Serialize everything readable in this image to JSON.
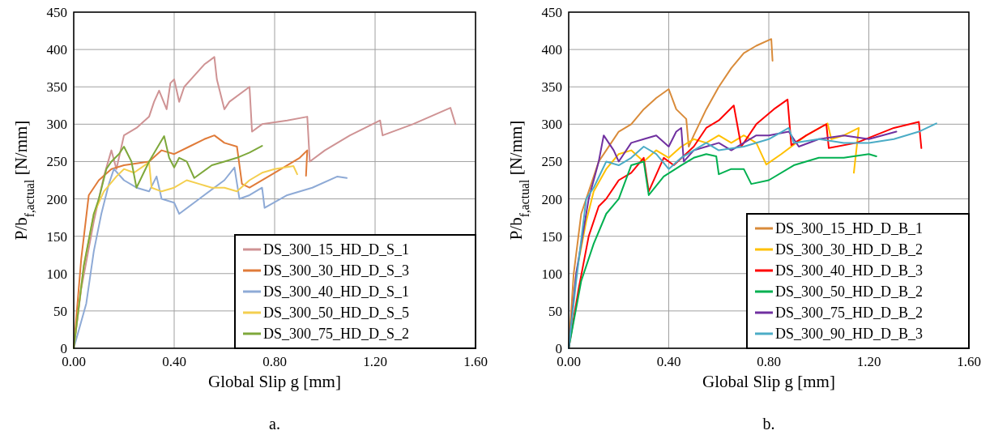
{
  "chart_data": [
    {
      "type": "line",
      "xlabel": "Global Slip g [mm]",
      "ylabel": "P/b$_{f,actual}$ [N/mm]",
      "annotations": [
        "a."
      ],
      "grid": true,
      "legend": "bottom right",
      "xlim": [
        0,
        1.6
      ],
      "xticks": [
        {
          "value": 0,
          "label": "0.00"
        },
        {
          "value": 0.4,
          "label": "0.40"
        },
        {
          "value": 0.8,
          "label": "0.80"
        },
        {
          "value": 1.2,
          "label": "1.20"
        },
        {
          "value": 1.6,
          "label": "1.60"
        }
      ],
      "ylim": [
        0,
        450
      ],
      "yticks": [
        0,
        50,
        100,
        150,
        200,
        250,
        300,
        350,
        400,
        450
      ],
      "series": [
        {
          "name": "DS_300_15_HD_D_S_1",
          "color": "#cf9394",
          "x": [
            0,
            0.03,
            0.08,
            0.12,
            0.15,
            0.17,
            0.2,
            0.25,
            0.3,
            0.32,
            0.34,
            0.37,
            0.385,
            0.4,
            0.42,
            0.44,
            0.48,
            0.52,
            0.56,
            0.57,
            0.6,
            0.62,
            0.7,
            0.71,
            0.75,
            0.85,
            0.93,
            0.94,
            1.0,
            1.05,
            1.1,
            1.22,
            1.23,
            1.35,
            1.5,
            1.52
          ],
          "values": [
            0,
            80,
            170,
            230,
            265,
            240,
            285,
            295,
            310,
            330,
            345,
            320,
            355,
            360,
            330,
            350,
            365,
            380,
            390,
            360,
            320,
            330,
            350,
            290,
            300,
            305,
            310,
            250,
            265,
            275,
            285,
            305,
            285,
            300,
            322,
            300
          ]
        },
        {
          "name": "DS_300_30_HD_D_S_3",
          "color": "#e07b39",
          "x": [
            0,
            0.03,
            0.06,
            0.1,
            0.15,
            0.2,
            0.3,
            0.35,
            0.4,
            0.46,
            0.52,
            0.56,
            0.6,
            0.65,
            0.67,
            0.7,
            0.8,
            0.9,
            0.93,
            0.925
          ],
          "values": [
            0,
            120,
            205,
            225,
            240,
            245,
            250,
            265,
            260,
            270,
            280,
            285,
            275,
            270,
            220,
            215,
            235,
            255,
            265,
            231
          ]
        },
        {
          "name": "DS_300_40_HD_D_S_1",
          "color": "#8eaad6",
          "x": [
            0,
            0.05,
            0.08,
            0.11,
            0.14,
            0.16,
            0.2,
            0.25,
            0.3,
            0.33,
            0.35,
            0.4,
            0.42,
            0.5,
            0.6,
            0.64,
            0.66,
            0.7,
            0.75,
            0.76,
            0.85,
            0.95,
            1.05,
            1.087
          ],
          "values": [
            0,
            60,
            130,
            180,
            220,
            240,
            225,
            215,
            210,
            230,
            200,
            195,
            180,
            200,
            225,
            242,
            200,
            205,
            215,
            188,
            205,
            215,
            230,
            228
          ]
        },
        {
          "name": "DS_300_50_HD_D_S_5",
          "color": "#f4cf4f",
          "x": [
            0,
            0.04,
            0.08,
            0.12,
            0.17,
            0.2,
            0.24,
            0.3,
            0.31,
            0.35,
            0.4,
            0.45,
            0.5,
            0.55,
            0.6,
            0.65,
            0.7,
            0.75,
            0.8,
            0.875,
            0.89
          ],
          "values": [
            0,
            110,
            180,
            210,
            230,
            240,
            235,
            249,
            215,
            210,
            215,
            225,
            220,
            215,
            215,
            210,
            225,
            235,
            240,
            244,
            233
          ]
        },
        {
          "name": "DS_300_75_HD_D_S_2",
          "color": "#7ea83b",
          "x": [
            0,
            0.04,
            0.08,
            0.1,
            0.13,
            0.15,
            0.18,
            0.2,
            0.23,
            0.25,
            0.3,
            0.36,
            0.38,
            0.4,
            0.42,
            0.45,
            0.48,
            0.55,
            0.6,
            0.65,
            0.7,
            0.75
          ],
          "values": [
            0,
            110,
            180,
            200,
            240,
            250,
            260,
            270,
            250,
            215,
            250,
            284,
            255,
            242,
            255,
            250,
            228,
            245,
            250,
            255,
            262,
            271
          ]
        }
      ]
    },
    {
      "type": "line",
      "xlabel": "Global Slip g [mm]",
      "ylabel": "P/b$_{f,actual}$ [N/mm]",
      "annotations": [
        "b."
      ],
      "grid": true,
      "legend": "bottom right",
      "xlim": [
        0,
        1.6
      ],
      "xticks": [
        {
          "value": 0,
          "label": "0.00"
        },
        {
          "value": 0.4,
          "label": "0.40"
        },
        {
          "value": 0.8,
          "label": "0.80"
        },
        {
          "value": 1.2,
          "label": "1.20"
        },
        {
          "value": 1.6,
          "label": "1.60"
        }
      ],
      "ylim": [
        0,
        450
      ],
      "yticks": [
        0,
        50,
        100,
        150,
        200,
        250,
        300,
        350,
        400,
        450
      ],
      "series": [
        {
          "name": "DS_300_15_HD_D_B_1",
          "color": "#d98b3a",
          "x": [
            0,
            0.02,
            0.05,
            0.08,
            0.12,
            0.15,
            0.2,
            0.25,
            0.3,
            0.35,
            0.4,
            0.43,
            0.47,
            0.48,
            0.5,
            0.55,
            0.6,
            0.65,
            0.7,
            0.75,
            0.81,
            0.815
          ],
          "values": [
            0,
            100,
            180,
            210,
            250,
            265,
            290,
            300,
            320,
            335,
            347,
            320,
            307,
            270,
            285,
            320,
            350,
            375,
            395,
            405,
            414,
            385
          ]
        },
        {
          "name": "DS_300_30_HD_D_B_2",
          "color": "#ffc000",
          "x": [
            0,
            0.03,
            0.07,
            0.1,
            0.15,
            0.2,
            0.25,
            0.3,
            0.35,
            0.4,
            0.45,
            0.5,
            0.55,
            0.6,
            0.65,
            0.7,
            0.75,
            0.79,
            0.85,
            0.95,
            1.035,
            1.05,
            1.1,
            1.16,
            1.14
          ],
          "values": [
            0,
            100,
            170,
            210,
            240,
            260,
            265,
            250,
            265,
            255,
            270,
            280,
            275,
            285,
            275,
            285,
            275,
            246,
            260,
            285,
            301,
            280,
            285,
            295,
            235
          ]
        },
        {
          "name": "DS_300_40_HD_D_B_3",
          "color": "#ff0000",
          "x": [
            0,
            0.04,
            0.08,
            0.12,
            0.15,
            0.2,
            0.25,
            0.3,
            0.32,
            0.38,
            0.42,
            0.5,
            0.55,
            0.6,
            0.66,
            0.69,
            0.75,
            0.82,
            0.875,
            0.89,
            0.95,
            1.03,
            1.04,
            1.15,
            1.3,
            1.4,
            1.41
          ],
          "values": [
            0,
            80,
            150,
            190,
            200,
            225,
            235,
            255,
            210,
            255,
            245,
            270,
            295,
            305,
            325,
            270,
            300,
            320,
            333,
            272,
            285,
            300,
            268,
            275,
            295,
            303,
            268
          ]
        },
        {
          "name": "DS_300_50_HD_D_B_2",
          "color": "#00b050",
          "x": [
            0,
            0.05,
            0.1,
            0.15,
            0.2,
            0.25,
            0.3,
            0.32,
            0.38,
            0.45,
            0.5,
            0.55,
            0.59,
            0.6,
            0.65,
            0.7,
            0.73,
            0.8,
            0.9,
            1.0,
            1.1,
            1.2,
            1.23
          ],
          "values": [
            0,
            90,
            140,
            180,
            200,
            245,
            250,
            205,
            230,
            245,
            255,
            260,
            257,
            233,
            240,
            240,
            220,
            225,
            245,
            255,
            255,
            260,
            257
          ]
        },
        {
          "name": "DS_300_75_HD_D_B_2",
          "color": "#7030a0",
          "x": [
            0,
            0.03,
            0.08,
            0.12,
            0.14,
            0.18,
            0.2,
            0.25,
            0.3,
            0.35,
            0.4,
            0.43,
            0.45,
            0.46,
            0.5,
            0.55,
            0.6,
            0.65,
            0.7,
            0.75,
            0.8,
            0.88,
            0.92,
            1.0,
            1.1,
            1.2,
            1.31
          ],
          "values": [
            0,
            100,
            200,
            250,
            285,
            265,
            250,
            275,
            280,
            285,
            270,
            290,
            295,
            250,
            265,
            270,
            275,
            265,
            275,
            285,
            285,
            290,
            270,
            280,
            285,
            280,
            290
          ]
        },
        {
          "name": "DS_300_90_HD_D_B_3",
          "color": "#4bacc6",
          "x": [
            0,
            0.03,
            0.07,
            0.1,
            0.15,
            0.2,
            0.25,
            0.3,
            0.35,
            0.4,
            0.45,
            0.5,
            0.55,
            0.6,
            0.7,
            0.8,
            0.88,
            0.9,
            1.0,
            1.1,
            1.2,
            1.3,
            1.4,
            1.47
          ],
          "values": [
            0,
            90,
            200,
            215,
            250,
            245,
            255,
            270,
            260,
            240,
            255,
            265,
            275,
            265,
            270,
            280,
            295,
            275,
            280,
            275,
            275,
            280,
            290,
            301
          ]
        }
      ]
    }
  ]
}
